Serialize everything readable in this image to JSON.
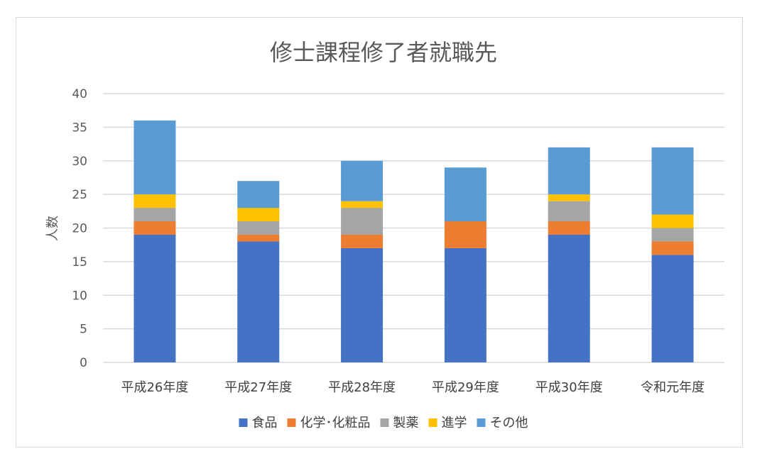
{
  "chart_data": {
    "type": "bar",
    "stacked": true,
    "title": "修士課程修了者就職先",
    "xlabel": "",
    "ylabel": "人数",
    "ylim": [
      0,
      40
    ],
    "yticks": [
      0,
      5,
      10,
      15,
      20,
      25,
      30,
      35,
      40
    ],
    "grid": true,
    "legend_position": "bottom",
    "categories": [
      "平成26年度",
      "平成27年度",
      "平成28年度",
      "平成29年度",
      "平成30年度",
      "令和元年度"
    ],
    "series": [
      {
        "name": "食品",
        "color": "#4472c4",
        "values": [
          19,
          18,
          17,
          17,
          19,
          16
        ]
      },
      {
        "name": "化学･化粧品",
        "color": "#ed7d31",
        "values": [
          2,
          1,
          2,
          4,
          2,
          2
        ]
      },
      {
        "name": "製薬",
        "color": "#a5a5a5",
        "values": [
          2,
          2,
          4,
          0,
          3,
          2
        ]
      },
      {
        "name": "進学",
        "color": "#ffc000",
        "values": [
          2,
          2,
          1,
          0,
          1,
          2
        ]
      },
      {
        "name": "その他",
        "color": "#5b9bd5",
        "values": [
          11,
          4,
          6,
          8,
          7,
          10
        ]
      }
    ]
  }
}
